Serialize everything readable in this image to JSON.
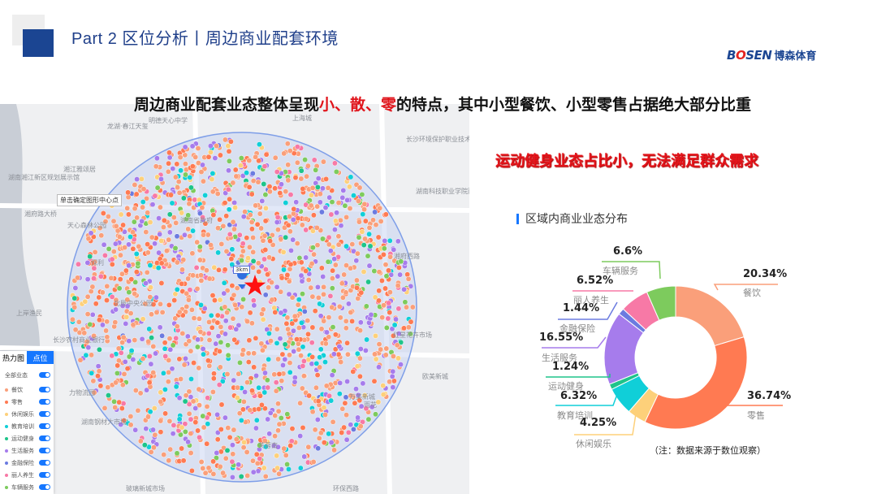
{
  "header": {
    "title": "Part 2 区位分析丨周边商业配套环境",
    "logo_text": "BOSEN",
    "logo_cn": "博森体育"
  },
  "subtitle": {
    "part1": "周边商业配套业态整体呈现",
    "red1": "小",
    "sep1": "、",
    "red2": "散",
    "sep2": "、",
    "red3": "零",
    "part2": "的特点，其中小型餐饮、小型零售占据绝大部分比重"
  },
  "sport_note": "运动健身业态占比小，无法满足群众需求",
  "map": {
    "tip": "单击确定图形中心点",
    "radius_label": "3km",
    "labels": [
      "明德天心中学",
      "上海城",
      "长沙环境保护职业技术学院",
      "龙湖·春江天玺",
      "湘江雅颂居",
      "湖南湘江新区规划展示馆",
      "湘府路大桥",
      "湖南省政府",
      "天心森林公园",
      "湖南科技职业学院雨花校区",
      "湘府西路",
      "保利",
      "北辰中央公园",
      "上岸渔民",
      "长沙农村商业银行",
      "红星花卉市场",
      "欧美新城",
      "雨花",
      "芙蓉南",
      "湖南钢材大市场",
      "玻璃新城市场",
      "环保西路",
      "力物流园",
      "万美新城"
    ],
    "tabs": [
      "热力图",
      "点位"
    ],
    "legend": [
      {
        "label": "全部业态",
        "color": ""
      },
      {
        "label": "餐饮",
        "color": "#fa9f7a"
      },
      {
        "label": "零售",
        "color": "#ff7a52"
      },
      {
        "label": "休闲娱乐",
        "color": "#fdd07a"
      },
      {
        "label": "教育培训",
        "color": "#10cfd8"
      },
      {
        "label": "运动健身",
        "color": "#1ec48a"
      },
      {
        "label": "生活服务",
        "color": "#a67cec"
      },
      {
        "label": "金融保险",
        "color": "#6b7be0"
      },
      {
        "label": "丽人养生",
        "color": "#f779a6"
      },
      {
        "label": "车辆服务",
        "color": "#7dcb5d"
      }
    ]
  },
  "chart_data": {
    "type": "pie",
    "donut": true,
    "title": "区域内商业业态分布",
    "categories": [
      "餐饮",
      "零售",
      "休闲娱乐",
      "教育培训",
      "运动健身",
      "生活服务",
      "金融保险",
      "丽人养生",
      "车辆服务"
    ],
    "values": [
      20.34,
      36.74,
      4.25,
      6.32,
      1.24,
      16.55,
      1.44,
      6.52,
      6.6
    ],
    "value_labels": [
      "20.34%",
      "36.74%",
      "4.25%",
      "6.32%",
      "1.24%",
      "16.55%",
      "1.44%",
      "6.52%",
      "6.6%"
    ],
    "colors": [
      "#fa9f7a",
      "#ff7a52",
      "#fdd07a",
      "#10cfd8",
      "#1ec48a",
      "#a67cec",
      "#6b7be0",
      "#f779a6",
      "#7dcb5d"
    ]
  },
  "note": "（注：数据来源于数位观察）"
}
